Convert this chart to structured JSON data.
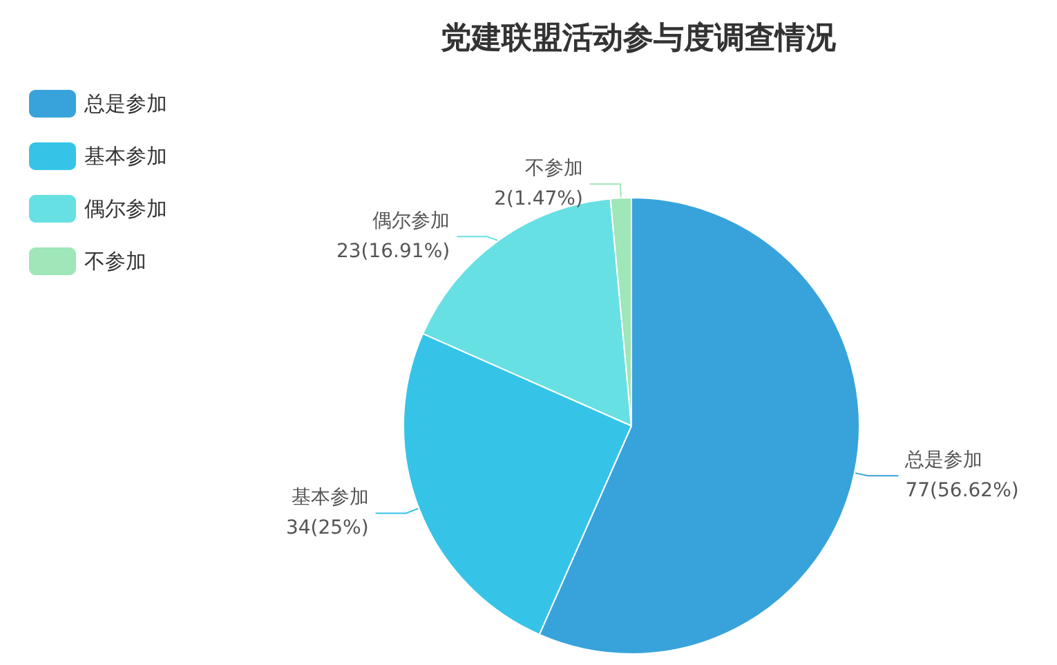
{
  "chart_data": {
    "type": "pie",
    "title": "党建联盟活动参与度调查情况",
    "categories": [
      "总是参加",
      "基本参加",
      "偶尔参加",
      "不参加"
    ],
    "values": [
      77,
      34,
      23,
      2
    ],
    "value_labels": [
      "77(56.62%)",
      "34(25%)",
      "23(16.91%)",
      "2(1.47%)"
    ],
    "colors": [
      "#38a3db",
      "#35c4e8",
      "#67e0e3",
      "#9fe6b8"
    ],
    "legend": "top left"
  }
}
